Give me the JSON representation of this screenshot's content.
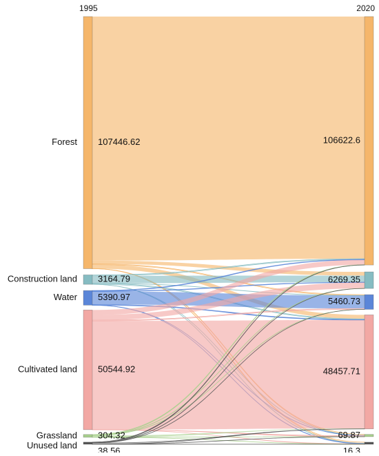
{
  "chart_data": {
    "type": "sankey",
    "left_year": "1995",
    "right_year": "2020",
    "nodes": [
      {
        "id": "forest",
        "label": "Forest",
        "value_1995": "107446.62",
        "value_2020": "106622.6",
        "color": "#f5b66b"
      },
      {
        "id": "construction",
        "label": "Construction land",
        "value_1995": "3164.79",
        "value_2020": "6269.35",
        "color": "#86bcc2"
      },
      {
        "id": "water",
        "label": "Water",
        "value_1995": "5390.97",
        "value_2020": "5460.73",
        "color": "#5b86d8"
      },
      {
        "id": "cultivated",
        "label": "Cultivated land",
        "value_1995": "50544.92",
        "value_2020": "48457.71",
        "color": "#f2a8a4"
      },
      {
        "id": "grassland",
        "label": "Grassland",
        "value_1995": "304.32",
        "value_2020": "69.87",
        "color": "#a8d08d"
      },
      {
        "id": "unused",
        "label": "Unused land",
        "value_1995": "38.56",
        "value_2020": "16.3",
        "color": "#555555"
      }
    ],
    "flows": [
      {
        "from": "forest",
        "to": "forest",
        "value": 104000
      },
      {
        "from": "forest",
        "to": "construction",
        "value": 1400
      },
      {
        "from": "forest",
        "to": "water",
        "value": 300
      },
      {
        "from": "forest",
        "to": "cultivated",
        "value": 1700
      },
      {
        "from": "forest",
        "to": "grassland",
        "value": 30
      },
      {
        "from": "forest",
        "to": "unused",
        "value": 10
      },
      {
        "from": "construction",
        "to": "forest",
        "value": 300
      },
      {
        "from": "construction",
        "to": "construction",
        "value": 2500
      },
      {
        "from": "construction",
        "to": "water",
        "value": 50
      },
      {
        "from": "construction",
        "to": "cultivated",
        "value": 300
      },
      {
        "from": "construction",
        "to": "grassland",
        "value": 5
      },
      {
        "from": "construction",
        "to": "unused",
        "value": 2
      },
      {
        "from": "water",
        "to": "forest",
        "value": 200
      },
      {
        "from": "water",
        "to": "construction",
        "value": 150
      },
      {
        "from": "water",
        "to": "water",
        "value": 4800
      },
      {
        "from": "water",
        "to": "cultivated",
        "value": 230
      },
      {
        "from": "water",
        "to": "grassland",
        "value": 5
      },
      {
        "from": "water",
        "to": "unused",
        "value": 3
      },
      {
        "from": "cultivated",
        "to": "forest",
        "value": 2100
      },
      {
        "from": "cultivated",
        "to": "construction",
        "value": 2200
      },
      {
        "from": "cultivated",
        "to": "water",
        "value": 300
      },
      {
        "from": "cultivated",
        "to": "cultivated",
        "value": 45900
      },
      {
        "from": "cultivated",
        "to": "grassland",
        "value": 25
      },
      {
        "from": "cultivated",
        "to": "unused",
        "value": 2
      },
      {
        "from": "grassland",
        "to": "forest",
        "value": 80
      },
      {
        "from": "grassland",
        "to": "construction",
        "value": 20
      },
      {
        "from": "grassland",
        "to": "water",
        "value": 10
      },
      {
        "from": "grassland",
        "to": "cultivated",
        "value": 190
      },
      {
        "from": "grassland",
        "to": "grassland",
        "value": 4
      },
      {
        "from": "grassland",
        "to": "unused",
        "value": 1
      },
      {
        "from": "unused",
        "to": "forest",
        "value": 12
      },
      {
        "from": "unused",
        "to": "construction",
        "value": 3
      },
      {
        "from": "unused",
        "to": "water",
        "value": 2
      },
      {
        "from": "unused",
        "to": "cultivated",
        "value": 20
      },
      {
        "from": "unused",
        "to": "grassland",
        "value": 1
      },
      {
        "from": "unused",
        "to": "unused",
        "value": 1
      }
    ]
  }
}
